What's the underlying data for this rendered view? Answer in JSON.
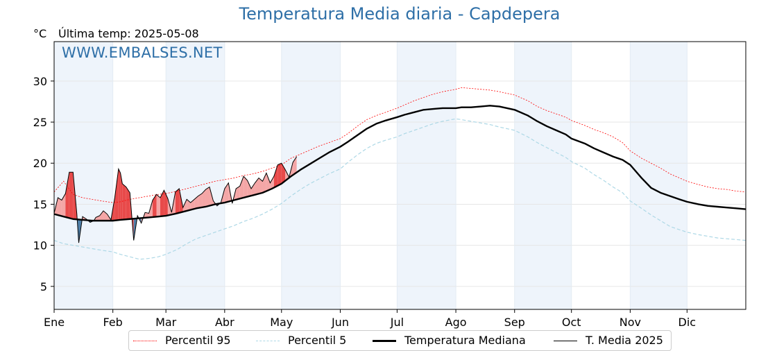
{
  "header": {
    "title": "Temperatura Media diaria - Capdepera",
    "unit": "°C",
    "last_temp": "Última temp: 2025-05-08",
    "watermark": "WWW.EMBALSES.NET"
  },
  "colors": {
    "p95": "#ff0000",
    "p5": "#add8e6",
    "median": "#000000",
    "current": "#000000",
    "fill_above": "#f4a6a6",
    "fill_above_strong": "#e84a4a",
    "fill_below": "#4f7fa8",
    "month_shade": "#eef4fb",
    "title": "#2e6fa7"
  },
  "chart_data": {
    "type": "line",
    "title": "Temperatura Media diaria - Capdepera",
    "ylabel": "°C",
    "xlabel": "",
    "ylim": [
      2.2,
      34.8
    ],
    "xlim": [
      0,
      365
    ],
    "yticks": [
      5,
      10,
      15,
      20,
      25,
      30
    ],
    "months": [
      {
        "label": "Ene",
        "day": 0
      },
      {
        "label": "Feb",
        "day": 31
      },
      {
        "label": "Mar",
        "day": 59
      },
      {
        "label": "Abr",
        "day": 90
      },
      {
        "label": "May",
        "day": 120
      },
      {
        "label": "Jun",
        "day": 151
      },
      {
        "label": "Jul",
        "day": 181
      },
      {
        "label": "Ago",
        "day": 212
      },
      {
        "label": "Sep",
        "day": 243
      },
      {
        "label": "Oct",
        "day": 273
      },
      {
        "label": "Nov",
        "day": 304
      },
      {
        "label": "Dic",
        "day": 334
      }
    ],
    "grid": true,
    "legend_position": "bottom",
    "series": [
      {
        "name": "Percentil 95",
        "style": "dotted-thin",
        "x": [
          0,
          5,
          10,
          15,
          20,
          25,
          31,
          35,
          40,
          45,
          50,
          55,
          59,
          65,
          70,
          75,
          80,
          85,
          90,
          95,
          100,
          105,
          110,
          115,
          120,
          125,
          130,
          135,
          140,
          145,
          151,
          155,
          160,
          165,
          170,
          175,
          181,
          185,
          190,
          195,
          200,
          205,
          212,
          215,
          220,
          225,
          230,
          235,
          243,
          250,
          255,
          260,
          265,
          270,
          273,
          280,
          285,
          290,
          295,
          300,
          304,
          310,
          315,
          320,
          325,
          330,
          334,
          340,
          345,
          350,
          355,
          360,
          365
        ],
        "y": [
          16.5,
          17.8,
          16.2,
          15.8,
          15.6,
          15.4,
          15.2,
          15.3,
          15.6,
          15.8,
          16.0,
          16.2,
          16.3,
          16.6,
          16.9,
          17.2,
          17.5,
          17.8,
          18.0,
          18.2,
          18.5,
          18.7,
          19.0,
          19.4,
          19.8,
          20.6,
          21.1,
          21.6,
          22.1,
          22.5,
          23.0,
          23.6,
          24.5,
          25.3,
          25.8,
          26.2,
          26.7,
          27.1,
          27.6,
          28.0,
          28.4,
          28.7,
          29.0,
          29.2,
          29.1,
          29.0,
          28.9,
          28.7,
          28.3,
          27.6,
          26.9,
          26.4,
          26.0,
          25.6,
          25.2,
          24.6,
          24.1,
          23.7,
          23.2,
          22.5,
          21.5,
          20.6,
          20.0,
          19.4,
          18.7,
          18.2,
          17.8,
          17.4,
          17.1,
          16.9,
          16.8,
          16.6,
          16.5
        ]
      },
      {
        "name": "Percentil 5",
        "style": "dashed-lightblue",
        "x": [
          0,
          5,
          10,
          15,
          20,
          25,
          31,
          35,
          40,
          45,
          50,
          55,
          59,
          65,
          70,
          75,
          80,
          85,
          90,
          95,
          100,
          105,
          110,
          115,
          120,
          125,
          130,
          135,
          140,
          145,
          151,
          155,
          160,
          165,
          170,
          175,
          181,
          185,
          190,
          195,
          200,
          205,
          212,
          215,
          220,
          225,
          230,
          235,
          243,
          250,
          255,
          260,
          265,
          270,
          273,
          280,
          285,
          290,
          295,
          300,
          304,
          310,
          315,
          320,
          325,
          330,
          334,
          340,
          345,
          350,
          355,
          360,
          365
        ],
        "y": [
          10.6,
          10.2,
          10.0,
          9.8,
          9.6,
          9.4,
          9.2,
          8.9,
          8.6,
          8.3,
          8.4,
          8.6,
          8.9,
          9.5,
          10.2,
          10.8,
          11.2,
          11.6,
          12.0,
          12.4,
          12.9,
          13.3,
          13.8,
          14.4,
          15.1,
          16.0,
          16.8,
          17.5,
          18.1,
          18.7,
          19.3,
          20.1,
          21.0,
          21.8,
          22.4,
          22.8,
          23.2,
          23.6,
          24.0,
          24.4,
          24.8,
          25.1,
          25.4,
          25.3,
          25.1,
          24.9,
          24.7,
          24.4,
          24.0,
          23.2,
          22.5,
          21.9,
          21.3,
          20.7,
          20.2,
          19.4,
          18.6,
          17.9,
          17.1,
          16.4,
          15.4,
          14.5,
          13.7,
          13.0,
          12.3,
          11.9,
          11.6,
          11.3,
          11.1,
          10.9,
          10.8,
          10.7,
          10.6
        ]
      },
      {
        "name": "Temperatura Mediana",
        "style": "thick-black",
        "x": [
          0,
          5,
          10,
          15,
          20,
          25,
          31,
          35,
          40,
          45,
          50,
          55,
          59,
          65,
          70,
          75,
          80,
          85,
          90,
          95,
          100,
          105,
          110,
          115,
          120,
          125,
          130,
          135,
          140,
          145,
          151,
          155,
          160,
          165,
          170,
          175,
          181,
          185,
          190,
          195,
          200,
          205,
          212,
          215,
          220,
          225,
          230,
          235,
          243,
          250,
          255,
          260,
          265,
          270,
          273,
          280,
          285,
          290,
          295,
          300,
          304,
          310,
          315,
          320,
          325,
          330,
          334,
          340,
          345,
          350,
          355,
          360,
          365
        ],
        "y": [
          13.8,
          13.5,
          13.2,
          13.1,
          13.0,
          13.0,
          13.0,
          13.1,
          13.2,
          13.3,
          13.4,
          13.5,
          13.6,
          13.9,
          14.2,
          14.5,
          14.7,
          15.0,
          15.2,
          15.5,
          15.8,
          16.1,
          16.4,
          16.9,
          17.5,
          18.4,
          19.2,
          19.9,
          20.6,
          21.3,
          22.0,
          22.6,
          23.4,
          24.2,
          24.8,
          25.2,
          25.6,
          25.9,
          26.2,
          26.5,
          26.6,
          26.7,
          26.7,
          26.8,
          26.8,
          26.9,
          27.0,
          26.9,
          26.5,
          25.8,
          25.1,
          24.5,
          24.0,
          23.5,
          23.0,
          22.4,
          21.8,
          21.3,
          20.8,
          20.4,
          19.8,
          18.2,
          17.0,
          16.4,
          16.0,
          15.6,
          15.3,
          15.0,
          14.8,
          14.7,
          14.6,
          14.5,
          14.4
        ]
      },
      {
        "name": "T. Media 2025",
        "style": "thin-black",
        "x": [
          0,
          2,
          4,
          6,
          8,
          10,
          12,
          13,
          15,
          17,
          19,
          21,
          22,
          24,
          26,
          28,
          30,
          32,
          34,
          35,
          36,
          38,
          40,
          42,
          44,
          46,
          48,
          50,
          52,
          54,
          56,
          58,
          60,
          62,
          64,
          66,
          68,
          70,
          72,
          74,
          76,
          78,
          80,
          82,
          84,
          86,
          88,
          90,
          92,
          94,
          96,
          98,
          100,
          102,
          104,
          106,
          108,
          110,
          112,
          114,
          116,
          118,
          120,
          122,
          124,
          126,
          128
        ],
        "y": [
          13.9,
          15.8,
          15.5,
          16.3,
          18.9,
          18.9,
          13.8,
          10.3,
          13.5,
          13.2,
          12.8,
          13.0,
          13.4,
          13.6,
          14.2,
          13.8,
          13.1,
          15.8,
          19.3,
          18.8,
          17.5,
          17.1,
          16.4,
          10.6,
          13.6,
          12.7,
          14.0,
          13.9,
          15.5,
          16.2,
          15.8,
          16.7,
          15.7,
          14.0,
          16.5,
          16.9,
          14.6,
          15.6,
          15.2,
          15.6,
          16.0,
          16.3,
          16.8,
          17.1,
          15.4,
          14.8,
          15.2,
          16.9,
          17.6,
          15.1,
          16.9,
          17.2,
          18.4,
          17.9,
          16.9,
          17.6,
          18.2,
          17.8,
          18.8,
          17.6,
          18.4,
          19.8,
          20.0,
          19.2,
          18.3,
          20.1,
          20.8
        ]
      }
    ]
  },
  "legend": {
    "p95": "Percentil 95",
    "p5": "Percentil 5",
    "median": "Temperatura Mediana",
    "current": "T. Media 2025"
  }
}
